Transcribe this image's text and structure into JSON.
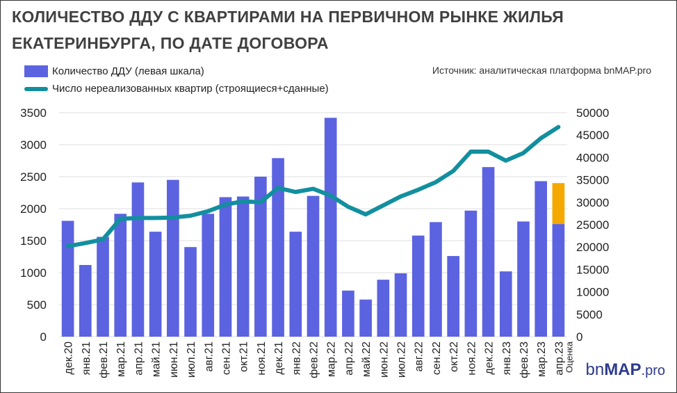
{
  "title_line1": "КОЛИЧЕСТВО ДДУ С КВАРТИРАМИ НА ПЕРВИЧНОМ РЫНКЕ ЖИЛЬЯ",
  "title_line2": "ЕКАТЕРИНБУРГА, ПО ДАТЕ ДОГОВОРА",
  "source": "Источник: аналитическая платформа bnMAP.pro",
  "logo": {
    "bn": "bn",
    "map": "MAP",
    "pro": ".pro"
  },
  "colors": {
    "bars": "#5b63e0",
    "estimate": "#f5a800",
    "line": "#128f9f"
  },
  "chart_data": {
    "type": "bar+line",
    "categories": [
      "дек.20",
      "янв.21",
      "фев.21",
      "мар.21",
      "апр.21",
      "май.21",
      "июн.21",
      "июл.21",
      "авг.21",
      "сен.21",
      "окт.21",
      "ноя.21",
      "дек.21",
      "янв.22",
      "фев.22",
      "мар.22",
      "апр.22",
      "май.22",
      "июн.22",
      "июл.22",
      "авг.22",
      "сен.22",
      "окт.22",
      "ноя.22",
      "дек.22",
      "янв.23",
      "фев.23",
      "мар.23",
      "апр.23"
    ],
    "last_category_note": "Оценка",
    "series": [
      {
        "name": "Количество ДДУ (левая шкала)",
        "type": "bar",
        "axis": "left",
        "values": [
          1810,
          1120,
          1560,
          1920,
          2410,
          1640,
          2450,
          1400,
          1920,
          2180,
          2190,
          2500,
          2790,
          1640,
          2200,
          3420,
          720,
          580,
          890,
          990,
          1580,
          1790,
          1260,
          1970,
          2650,
          1020,
          1800,
          2430,
          1760
        ]
      },
      {
        "name": "Оценка",
        "type": "bar-stack",
        "axis": "left",
        "index": 28,
        "value": 640
      },
      {
        "name": "Число нереализованных квартир (строящиеся+сданные)",
        "type": "line",
        "axis": "right",
        "values": [
          20200,
          20900,
          21700,
          26300,
          26500,
          26500,
          26600,
          27000,
          28000,
          29500,
          30200,
          30000,
          33200,
          32300,
          33000,
          31500,
          29000,
          27300,
          29300,
          31300,
          32800,
          34500,
          37000,
          41300,
          41300,
          39300,
          41000,
          44300,
          46800
        ]
      }
    ],
    "left_axis": {
      "range": [
        0,
        3500
      ],
      "ticks": [
        "0",
        "500",
        "1000",
        "1500",
        "2000",
        "2500",
        "3000",
        "3500"
      ]
    },
    "right_axis": {
      "range": [
        0,
        50000
      ],
      "ticks": [
        "0",
        "5000",
        "10000",
        "15000",
        "20000",
        "25000",
        "30000",
        "35000",
        "40000",
        "45000",
        "50000"
      ]
    },
    "grid": true,
    "legend_position": "top-left"
  }
}
